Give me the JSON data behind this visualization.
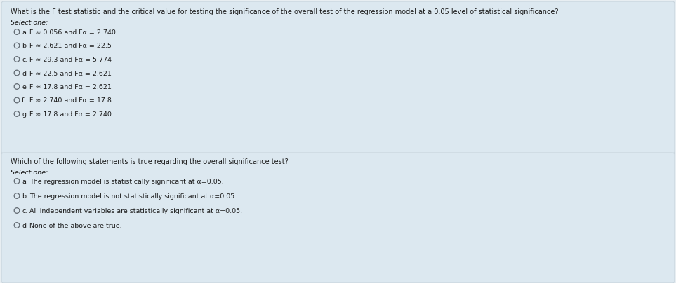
{
  "bg_color": "#e8f0f5",
  "box_bg": "#dce8f0",
  "gap_color": "#e8eef2",
  "border_color": "#c8d4dc",
  "text_color": "#1a1a1a",
  "question1": "What is the F test statistic and the critical value for testing the significance of the overall test of the regression model at a 0.05 level of statistical significance?",
  "select_one": "Select one:",
  "q1_options": [
    {
      "label": "a.",
      "text": "F ≈ 0.056 and Fα = 2.740"
    },
    {
      "label": "b.",
      "text": "F ≈ 2.621 and Fα = 22.5"
    },
    {
      "label": "c.",
      "text": "F ≈ 29.3 and Fα = 5.774"
    },
    {
      "label": "d.",
      "text": "F ≈ 22.5 and Fα = 2.621"
    },
    {
      "label": "e.",
      "text": "F ≈ 17.8 and Fα = 2.621"
    },
    {
      "label": "f.",
      "text": "F ≈ 2.740 and Fα = 17.8"
    },
    {
      "label": "g.",
      "text": "F ≈ 17.8 and Fα = 2.740"
    }
  ],
  "question2": "Which of the following statements is true regarding the overall significance test?",
  "q2_options": [
    {
      "label": "a.",
      "text": "The regression model is statistically significant at α=0.05."
    },
    {
      "label": "b.",
      "text": "The regression model is not statistically significant at α=0.05."
    },
    {
      "label": "c.",
      "text": "All independent variables are statistically significant at α=0.05."
    },
    {
      "label": "d.",
      "text": "None of the above are true."
    }
  ],
  "fig_width": 9.63,
  "fig_height": 4.04,
  "dpi": 100
}
